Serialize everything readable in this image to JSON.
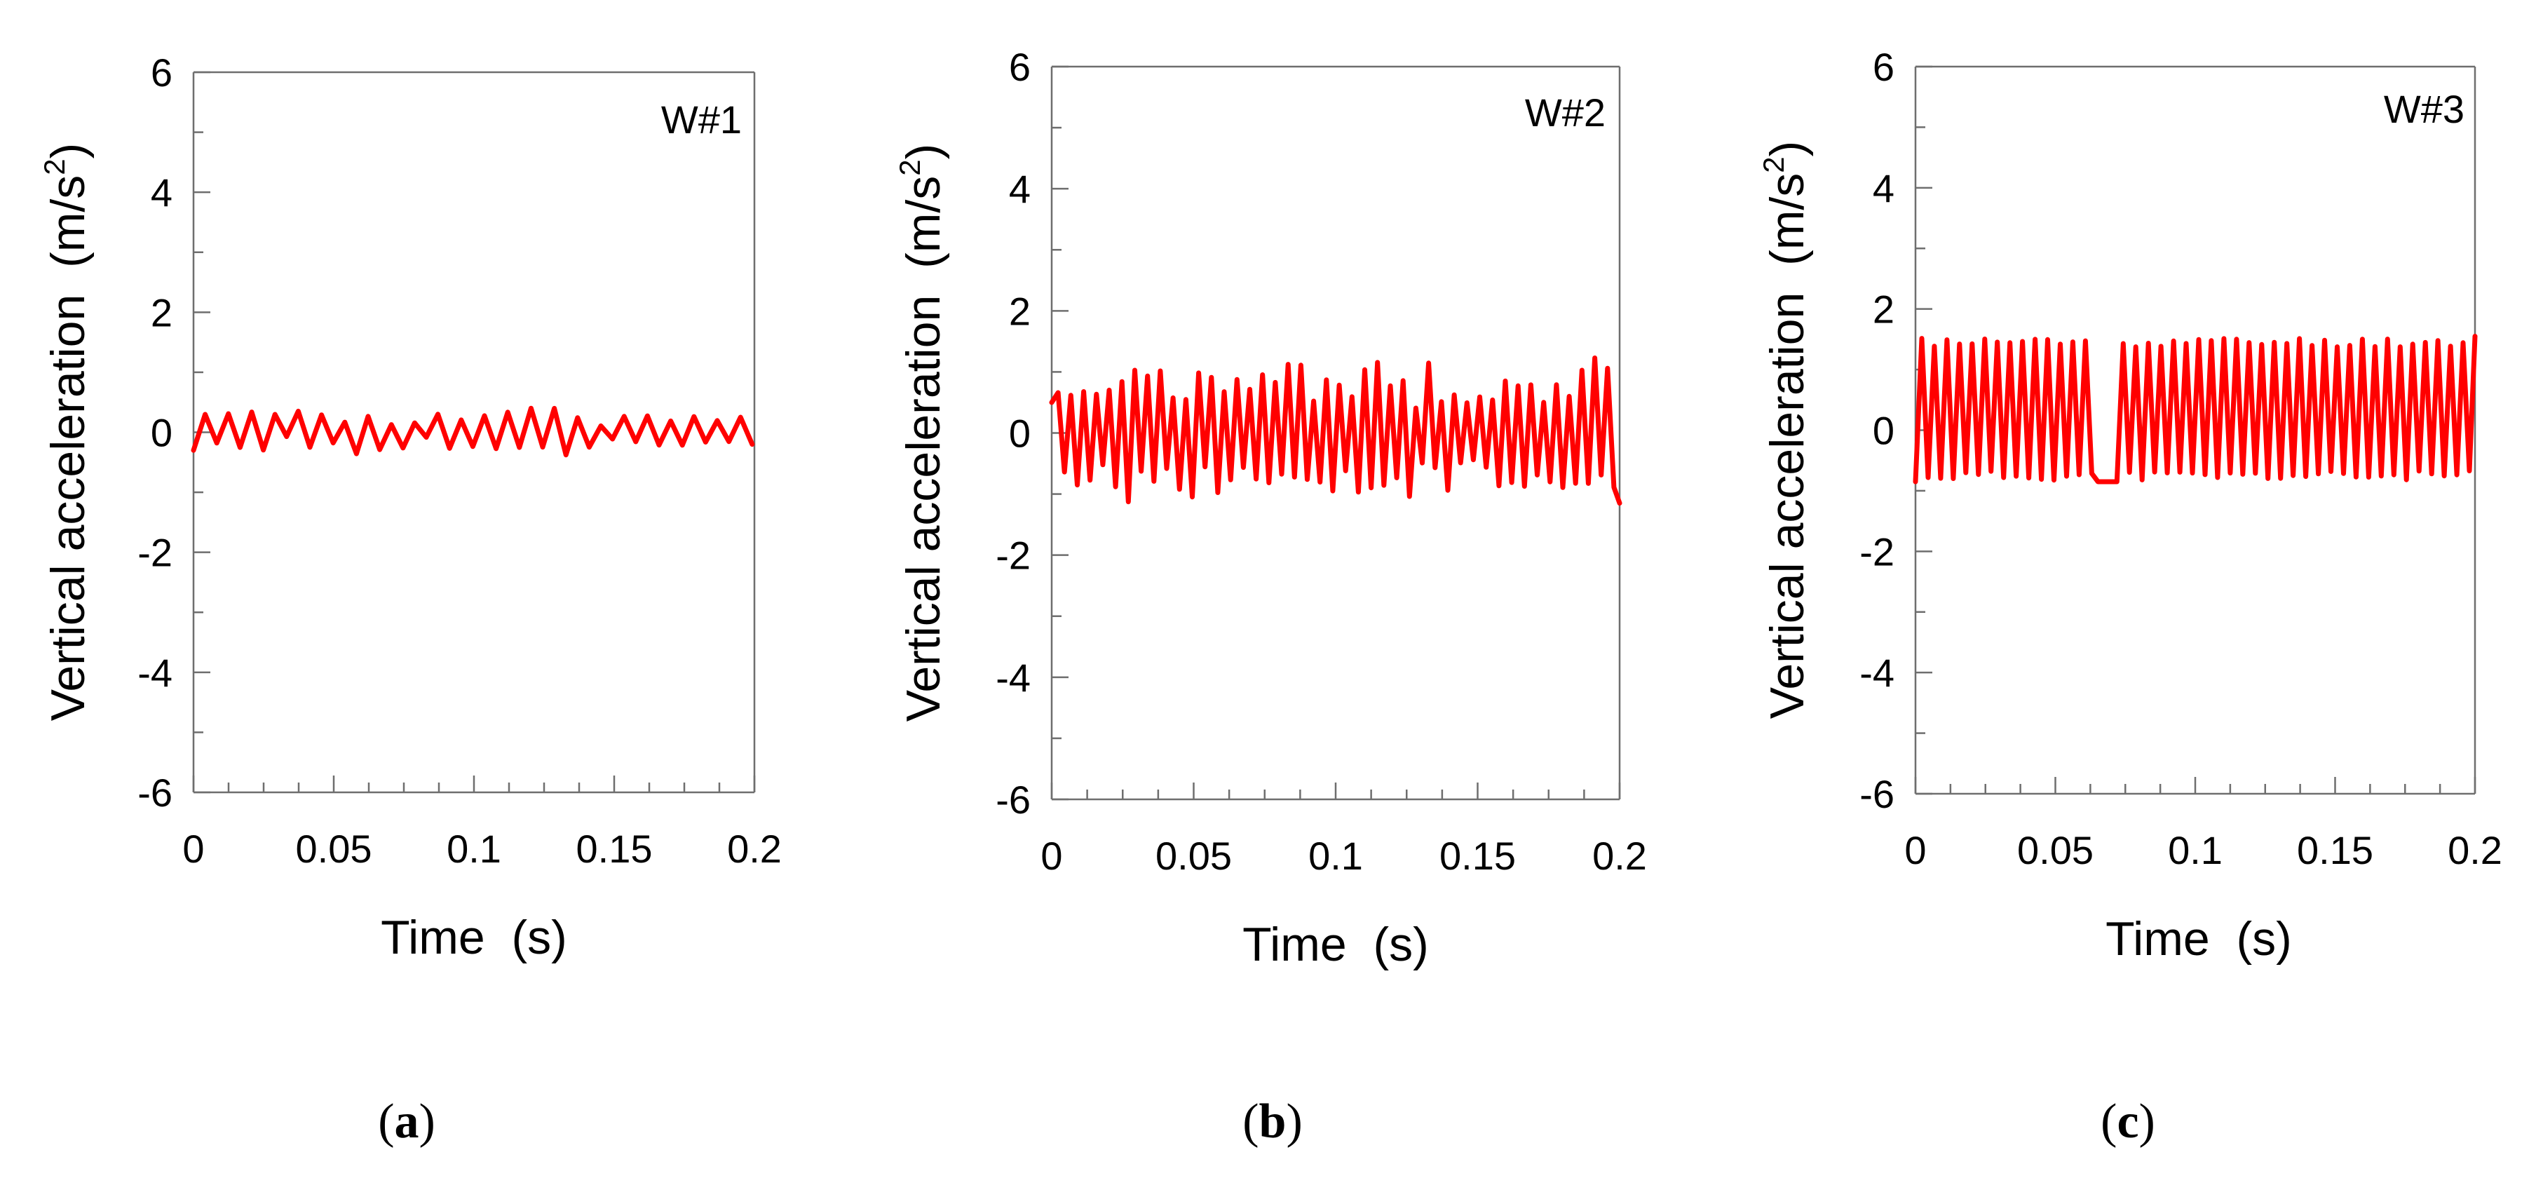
{
  "colors": {
    "series": "#ff0000",
    "axis": "#6e6e6e",
    "text": "#000000"
  },
  "chart_data": [
    {
      "type": "line",
      "panel_label": "W#1",
      "caption": "(a)",
      "caption_letter": "a",
      "xlabel": "Time  (s)",
      "ylabel": "Vertical acceleration  (m/s²)",
      "ylabel_main": "Vertical acceleration  (m/s",
      "ylabel_sup": "2",
      "ylabel_tail": ")",
      "xlim": [
        0,
        0.2
      ],
      "ylim": [
        -6,
        6
      ],
      "xticks": [
        "0",
        "0.05",
        "0.1",
        "0.15",
        "0.2"
      ],
      "yticks": [
        "-6",
        "-4",
        "-2",
        "0",
        "2",
        "4",
        "6"
      ],
      "series": [
        {
          "name": "W#1",
          "period_s": 0.0083,
          "amplitude": 0.3,
          "offset": 0.0,
          "noise": 0.12,
          "seed": 3,
          "start": -0.3,
          "end": -0.2
        }
      ]
    },
    {
      "type": "line",
      "panel_label": "W#2",
      "caption": "(b)",
      "caption_letter": "b",
      "xlabel": "Time  (s)",
      "ylabel": "Vertical acceleration  (m/s²)",
      "ylabel_main": "Vertical acceleration  (m/s",
      "ylabel_sup": "2",
      "ylabel_tail": ")",
      "xlim": [
        0,
        0.2
      ],
      "ylim": [
        -6,
        6
      ],
      "xticks": [
        "0",
        "0.05",
        "0.1",
        "0.15",
        "0.2"
      ],
      "yticks": [
        "-6",
        "-4",
        "-2",
        "0",
        "2",
        "4",
        "6"
      ],
      "series": [
        {
          "name": "W#2",
          "period_s": 0.0045,
          "amplitude": 1.0,
          "offset": 0.05,
          "noise": 0.25,
          "seed": 7,
          "start": 0.5,
          "end": -1.15
        }
      ]
    },
    {
      "type": "line",
      "panel_label": "W#3",
      "caption": "(c)",
      "caption_letter": "c",
      "xlabel": "Time  (s)",
      "ylabel": "Vertical acceleration  (m/s²)",
      "ylabel_main": "Vertical acceleration  (m/s",
      "ylabel_sup": "2",
      "ylabel_tail": ")",
      "xlim": [
        0,
        0.2
      ],
      "ylim": [
        -6,
        6
      ],
      "xticks": [
        "0",
        "0.05",
        "0.1",
        "0.15",
        "0.2"
      ],
      "yticks": [
        "-6",
        "-4",
        "-2",
        "0",
        "2",
        "4",
        "6"
      ],
      "series": [
        {
          "name": "W#3",
          "period_s": 0.0045,
          "peak": 1.45,
          "trough": -0.75,
          "noise": 0.08,
          "seed": 11,
          "start": -0.85,
          "end": 1.55,
          "flat_segment": [
            0.064,
            0.073
          ]
        }
      ]
    }
  ]
}
